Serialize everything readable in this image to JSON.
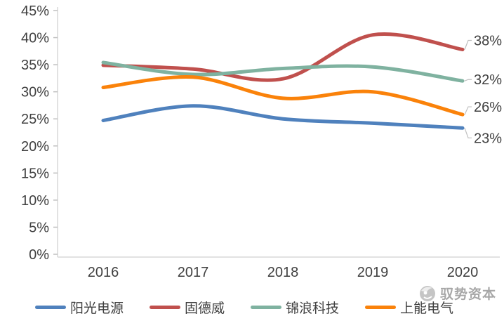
{
  "chart_data": {
    "type": "line",
    "title": "",
    "xlabel": "",
    "ylabel": "",
    "categories": [
      "2016",
      "2017",
      "2018",
      "2019",
      "2020"
    ],
    "series": [
      {
        "name": "阳光电源",
        "color": "#4F81BD",
        "values": [
          24.7,
          27.4,
          25.0,
          24.2,
          23.3
        ],
        "end_label": "23%"
      },
      {
        "name": "固德威",
        "color": "#C0504D",
        "values": [
          34.9,
          34.2,
          32.4,
          40.5,
          37.8
        ],
        "end_label": "38%"
      },
      {
        "name": "锦浪科技",
        "color": "#7FB2A0",
        "values": [
          35.4,
          33.2,
          34.3,
          34.6,
          32.0
        ],
        "end_label": "32%"
      },
      {
        "name": "上能电气",
        "color": "#FA820A",
        "values": [
          30.8,
          32.7,
          28.8,
          30.0,
          25.8
        ],
        "end_label": "26%"
      }
    ],
    "ylim": [
      0,
      45
    ],
    "ytick_step": 5,
    "ytick_labels": [
      "0%",
      "5%",
      "10%",
      "15%",
      "20%",
      "25%",
      "30%",
      "35%",
      "40%",
      "45%"
    ],
    "grid": false,
    "legend_position": "bottom",
    "axis_color": "#D9D9D9",
    "tick_color": "#BFBFBF",
    "text_color": "#404040"
  },
  "watermark": {
    "text": "驭势资本"
  }
}
